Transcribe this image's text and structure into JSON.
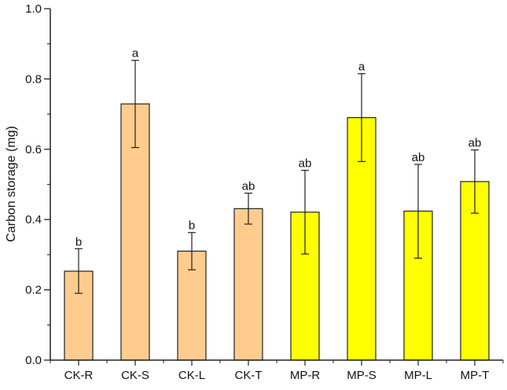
{
  "chart_data": {
    "type": "bar",
    "title": "",
    "xlabel": "",
    "ylabel": "Carbon storage (mg)",
    "ylim": [
      0,
      1.0
    ],
    "yticks": [
      "0.0",
      "0.2",
      "0.4",
      "0.6",
      "0.8",
      "1.0"
    ],
    "grid": false,
    "categories": [
      "CK-R",
      "CK-S",
      "CK-L",
      "CK-T",
      "MP-R",
      "MP-S",
      "MP-L",
      "MP-T"
    ],
    "values": [
      0.253,
      0.729,
      0.31,
      0.431,
      0.421,
      0.69,
      0.424,
      0.508
    ],
    "error_low": [
      0.19,
      0.605,
      0.257,
      0.387,
      0.302,
      0.565,
      0.29,
      0.418
    ],
    "error_high": [
      0.317,
      0.853,
      0.363,
      0.475,
      0.54,
      0.815,
      0.557,
      0.598
    ],
    "significance_labels": [
      "b",
      "a",
      "b",
      "ab",
      "ab",
      "a",
      "ab",
      "ab"
    ],
    "colors": [
      "#FFCC8E",
      "#FFCC8E",
      "#FFCC8E",
      "#FFCC8E",
      "#FFFF00",
      "#FFFF00",
      "#FFFF00",
      "#FFFF00"
    ],
    "groups": {
      "CK": "#FFCC8E",
      "MP": "#FFFF00"
    }
  }
}
